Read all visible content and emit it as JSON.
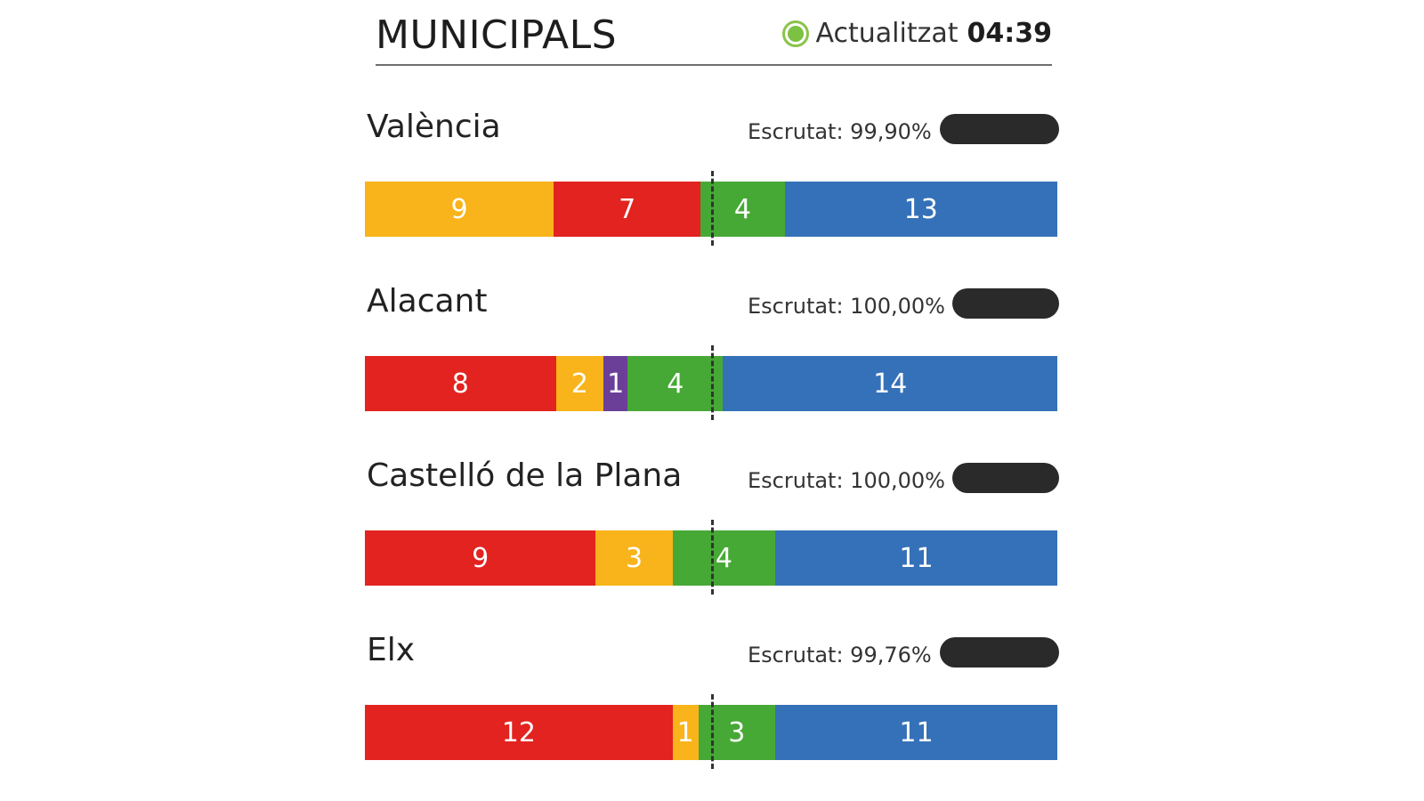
{
  "header": {
    "title": "MUNICIPALS",
    "updated_label": "Actualitzat",
    "updated_time": "04:39"
  },
  "colors": {
    "red": "#e2231f",
    "orange": "#f8b41a",
    "green": "#46a935",
    "blue": "#3571b8",
    "purple": "#6b3f98",
    "pill": "#2a2a2a"
  },
  "cities": [
    {
      "name": "València",
      "scrutiny": "Escrutat: 99,90%",
      "seats": [
        {
          "value": 9,
          "color": "#f8b41a"
        },
        {
          "value": 7,
          "color": "#e2231f"
        },
        {
          "value": 4,
          "color": "#46a935"
        },
        {
          "value": 13,
          "color": "#3571b8"
        }
      ]
    },
    {
      "name": "Alacant",
      "scrutiny": "Escrutat: 100,00%",
      "seats": [
        {
          "value": 8,
          "color": "#e2231f"
        },
        {
          "value": 2,
          "color": "#f8b41a"
        },
        {
          "value": 1,
          "color": "#6b3f98"
        },
        {
          "value": 4,
          "color": "#46a935"
        },
        {
          "value": 14,
          "color": "#3571b8"
        }
      ]
    },
    {
      "name": "Castelló de la Plana",
      "scrutiny": "Escrutat: 100,00%",
      "seats": [
        {
          "value": 9,
          "color": "#e2231f"
        },
        {
          "value": 3,
          "color": "#f8b41a"
        },
        {
          "value": 4,
          "color": "#46a935"
        },
        {
          "value": 11,
          "color": "#3571b8"
        }
      ]
    },
    {
      "name": "Elx",
      "scrutiny": "Escrutat: 99,76%",
      "seats": [
        {
          "value": 12,
          "color": "#e2231f"
        },
        {
          "value": 1,
          "color": "#f8b41a"
        },
        {
          "value": 3,
          "color": "#46a935"
        },
        {
          "value": 11,
          "color": "#3571b8"
        }
      ]
    }
  ]
}
